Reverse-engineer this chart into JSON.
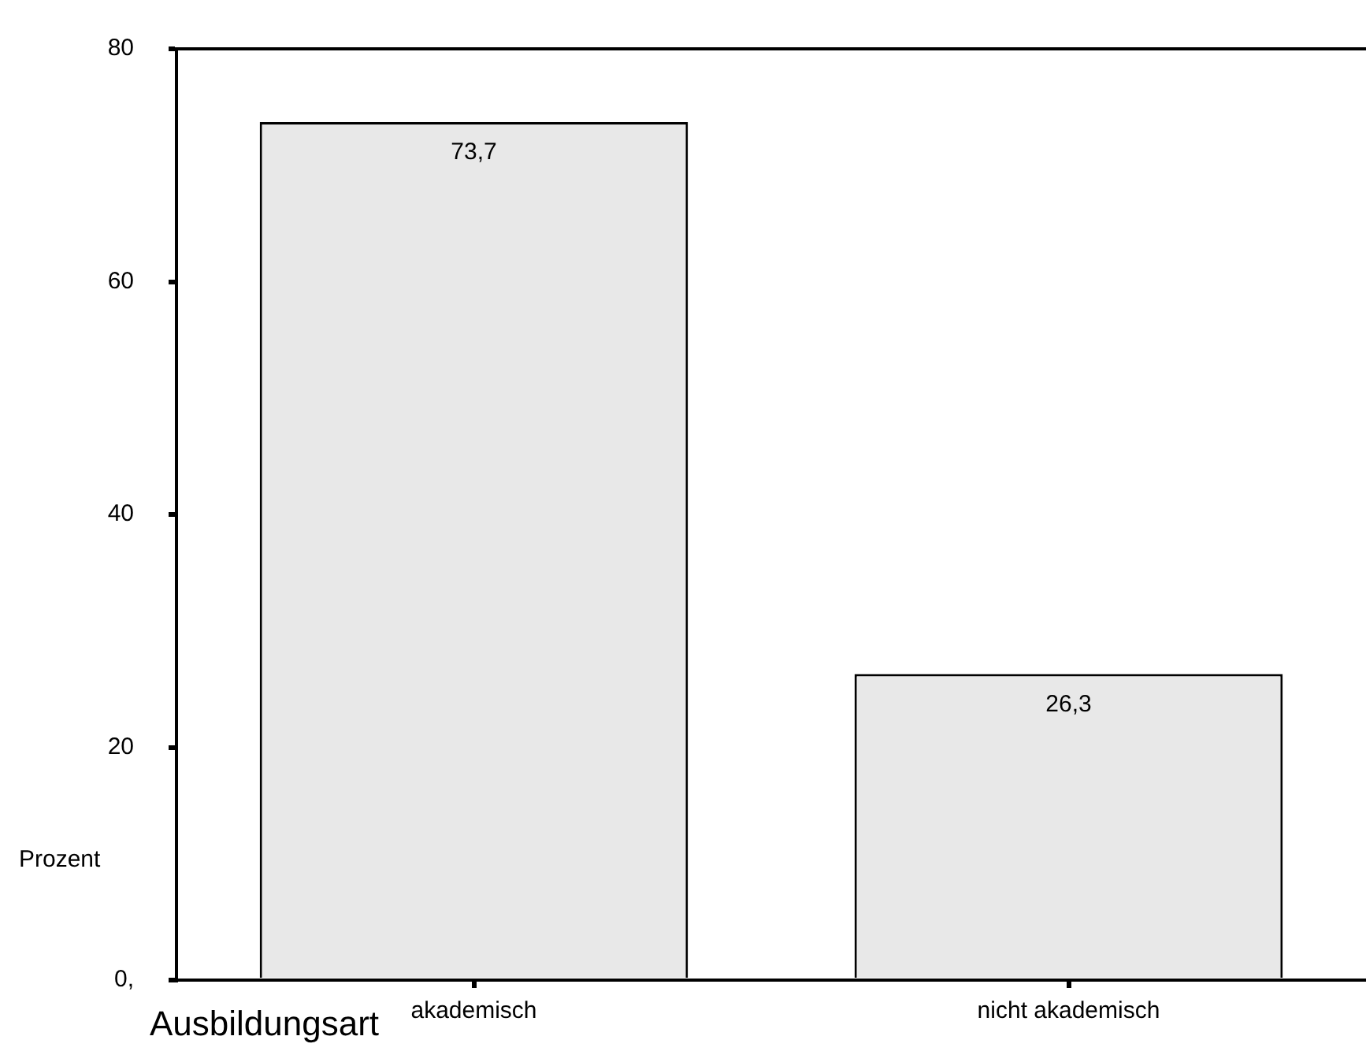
{
  "chart_data": {
    "type": "bar",
    "categories": [
      "akademisch",
      "nicht akademisch"
    ],
    "values": [
      73.7,
      26.3
    ],
    "value_labels": [
      "73,7",
      "26,3"
    ],
    "color": "#e8e8e8",
    "xlabel": "Ausbildungsart",
    "ylabel": "Prozent",
    "ylim": [
      0,
      80
    ],
    "yticks": [
      {
        "value": 0,
        "label": "0,"
      },
      20,
      40,
      60,
      80
    ],
    "grid": false,
    "legend": false
  }
}
